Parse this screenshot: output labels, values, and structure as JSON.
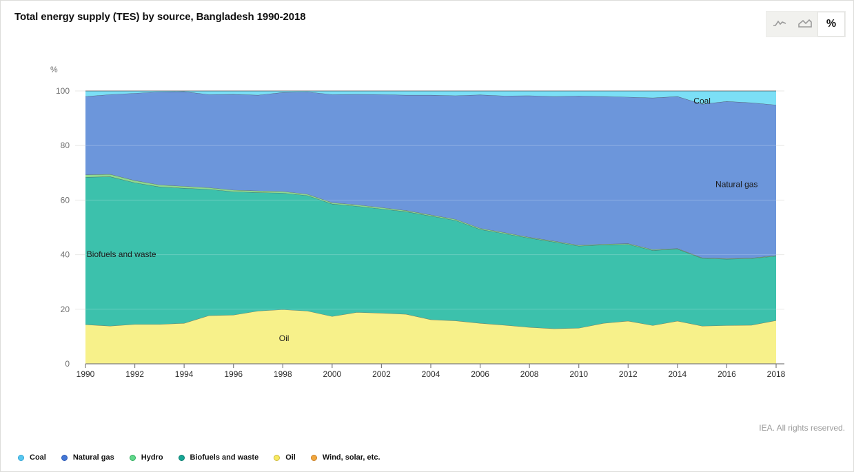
{
  "header": {
    "title": "Total energy supply (TES) by source, Bangladesh 1990-2018"
  },
  "toolbar": {
    "buttons": [
      {
        "id": "line",
        "icon": "line-chart-icon",
        "selected": false
      },
      {
        "id": "area",
        "icon": "area-chart-icon",
        "selected": false
      },
      {
        "id": "percent",
        "icon": "percent-icon",
        "label": "%",
        "selected": true
      }
    ]
  },
  "credit": "IEA. All rights reserved.",
  "chart_data": {
    "type": "area",
    "stacked": true,
    "unit": "percent",
    "title": "Total energy supply (TES) by source, Bangladesh 1990-2018",
    "ylabel": "%",
    "ylim": [
      0,
      100
    ],
    "y_ticks": [
      0,
      20,
      40,
      60,
      80,
      100
    ],
    "x_tick_step": 2,
    "grid": true,
    "x": [
      1990,
      1991,
      1992,
      1993,
      1994,
      1995,
      1996,
      1997,
      1998,
      1999,
      2000,
      2001,
      2002,
      2003,
      2004,
      2005,
      2006,
      2007,
      2008,
      2009,
      2010,
      2011,
      2012,
      2013,
      2014,
      2015,
      2016,
      2017,
      2018
    ],
    "series": [
      {
        "id": "oil",
        "name": "Oil",
        "area": "#F7F18A",
        "dot": "#F8EA60",
        "dot_border": "#CDBA3E",
        "values": [
          14.4,
          13.9,
          14.5,
          14.5,
          14.9,
          17.7,
          17.9,
          19.4,
          19.9,
          19.4,
          17.4,
          18.9,
          18.6,
          18.2,
          16.2,
          15.8,
          14.9,
          14.2,
          13.4,
          12.9,
          13.1,
          14.9,
          15.7,
          14.1,
          15.7,
          13.9,
          14.1,
          14.2,
          15.9
        ]
      },
      {
        "id": "biofuels-and-waste",
        "name": "Biofuels and waste",
        "area": "#3CC1AC",
        "dot": "#16A695",
        "dot_border": "#0B7D6F",
        "values": [
          54.0,
          54.7,
          51.9,
          50.4,
          49.5,
          46.3,
          45.2,
          43.4,
          42.7,
          42.3,
          41.2,
          38.9,
          38.2,
          37.6,
          38.0,
          36.8,
          34.4,
          33.5,
          32.7,
          31.8,
          30.1,
          28.7,
          28.1,
          27.5,
          26.4,
          24.8,
          24.3,
          24.4,
          23.6
        ]
      },
      {
        "id": "hydro",
        "name": "Hydro",
        "area": "#8FD98F",
        "dot": "#61D88B",
        "dot_border": "#2FAD5F",
        "values": [
          0.9,
          0.9,
          0.8,
          0.7,
          0.7,
          0.6,
          0.6,
          0.6,
          0.6,
          0.5,
          0.5,
          0.5,
          0.5,
          0.4,
          0.4,
          0.4,
          0.4,
          0.4,
          0.3,
          0.3,
          0.3,
          0.3,
          0.3,
          0.3,
          0.2,
          0.2,
          0.2,
          0.2,
          0.2
        ]
      },
      {
        "id": "natural-gas",
        "name": "Natural gas",
        "area": "#6C96DB",
        "dot": "#4377D6",
        "dot_border": "#2A58B5",
        "values": [
          28.7,
          29.2,
          32.0,
          34.1,
          34.7,
          34.1,
          35.1,
          35.1,
          36.3,
          37.5,
          39.6,
          40.5,
          41.4,
          42.3,
          43.9,
          45.3,
          48.9,
          50.1,
          51.9,
          53.0,
          54.7,
          54.1,
          53.7,
          55.6,
          55.7,
          56.3,
          57.6,
          56.9,
          55.2
        ]
      },
      {
        "id": "coal",
        "name": "Coal",
        "area": "#7BDFF6",
        "dot": "#58C7F0",
        "dot_border": "#2FA3D4",
        "values": [
          2.0,
          1.3,
          0.8,
          0.3,
          0.2,
          1.3,
          1.2,
          1.5,
          0.5,
          0.3,
          1.3,
          1.2,
          1.3,
          1.5,
          1.5,
          1.7,
          1.4,
          1.8,
          1.7,
          2.0,
          1.8,
          2.0,
          2.2,
          2.5,
          2.0,
          4.8,
          3.8,
          4.3,
          5.1
        ]
      },
      {
        "id": "wind-solar-etc",
        "name": "Wind, solar, etc.",
        "area": "#F1A73F",
        "dot": "#F1A73F",
        "dot_border": "#C97E22",
        "values": [
          0,
          0,
          0,
          0,
          0,
          0,
          0,
          0,
          0,
          0,
          0,
          0,
          0,
          0,
          0,
          0,
          0,
          0,
          0,
          0,
          0,
          0,
          0,
          0,
          0,
          0,
          0,
          0,
          0
        ]
      }
    ],
    "legend": [
      "coal",
      "natural-gas",
      "hydro",
      "biofuels-and-waste",
      "oil",
      "wind-solar-etc"
    ],
    "annotations": [
      {
        "text": "Coal",
        "year": 2015.0,
        "pct": 96.4,
        "anchor": "middle"
      },
      {
        "text": "Natural gas",
        "year": 2016.4,
        "pct": 65.8,
        "anchor": "middle"
      },
      {
        "text": "Biofuels and waste",
        "year": 1990.05,
        "pct": 40.1,
        "anchor": "start"
      },
      {
        "text": "Oil",
        "year": 1998.05,
        "pct": 9.4,
        "anchor": "middle"
      }
    ],
    "colors": {
      "edge": "#454545",
      "grid": "#e9e9e7",
      "axis": "#7d7d7d",
      "tick_label": "#2d2d2d",
      "y_label": "#6f6f6f"
    }
  }
}
